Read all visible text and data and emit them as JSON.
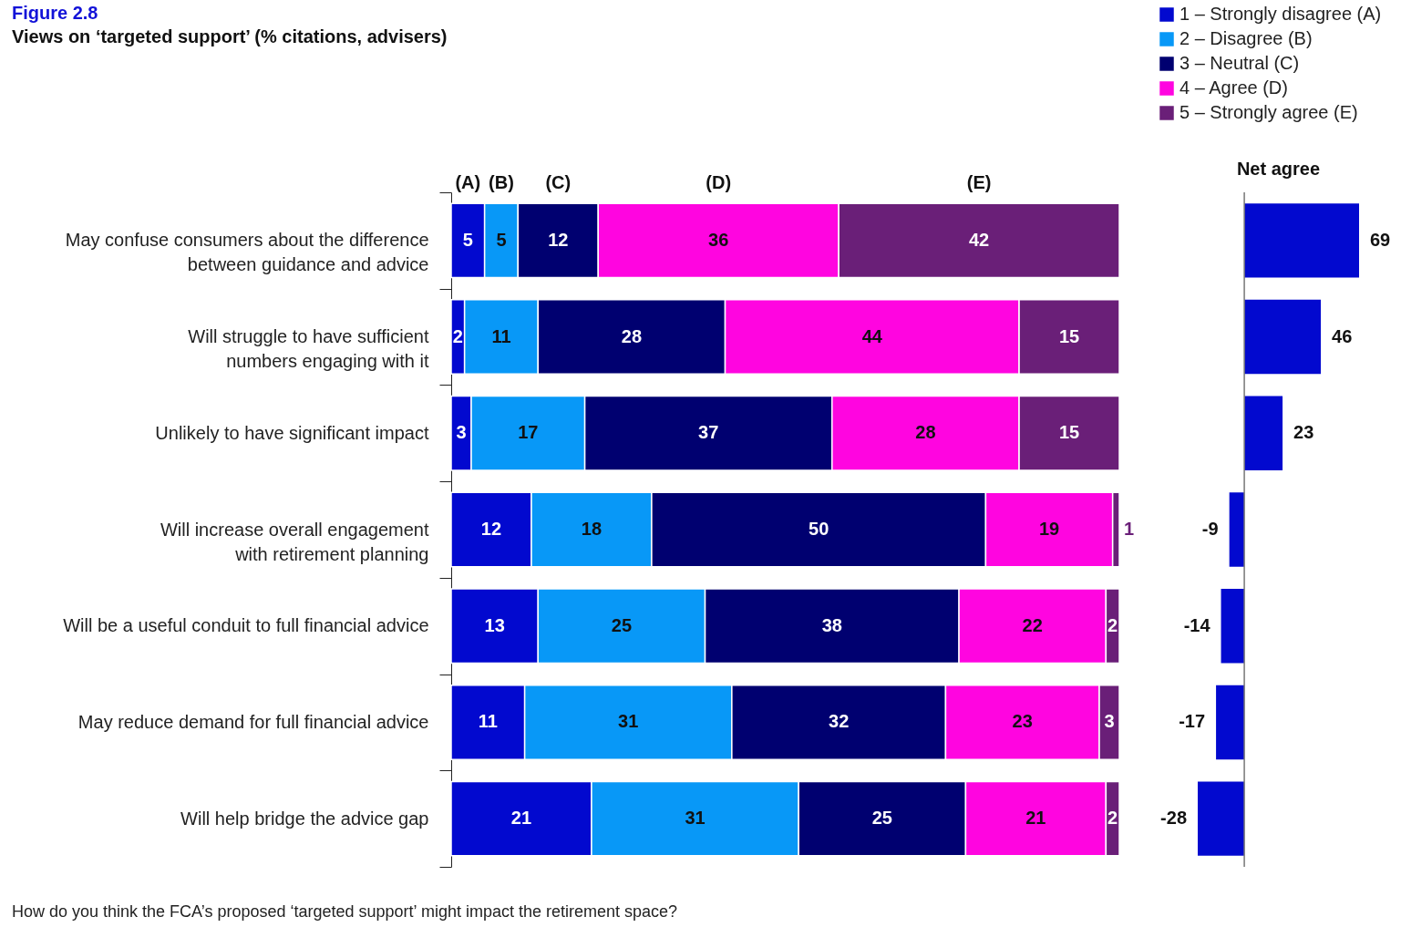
{
  "chart_data": [
    {
      "type": "bar",
      "orientation": "horizontal",
      "stacked": true,
      "title": "Figure 2.8",
      "subtitle": "Views on ‘targeted support’ (% citations, advisers)",
      "categories": [
        "May confuse consumers about the difference between guidance and advice",
        "Will struggle to have sufficient numbers engaging with it",
        "Unlikely to have significant impact",
        "Will increase overall engagement with retirement planning",
        "Will be a useful conduit to full financial advice",
        "May reduce demand for full financial advice",
        "Will help bridge the advice gap"
      ],
      "series": [
        {
          "name": "1 – Strongly disagree (A)",
          "color": "#0209cf",
          "values": [
            5,
            2,
            3,
            12,
            13,
            11,
            21
          ]
        },
        {
          "name": "2 – Disagree (B)",
          "color": "#0898f7",
          "values": [
            5,
            11,
            17,
            18,
            25,
            31,
            31
          ]
        },
        {
          "name": "3 – Neutral (C)",
          "color": "#000070",
          "values": [
            12,
            28,
            37,
            50,
            38,
            32,
            25
          ]
        },
        {
          "name": "4 – Agree (D)",
          "color": "#ff05e0",
          "values": [
            36,
            44,
            28,
            19,
            22,
            23,
            21
          ]
        },
        {
          "name": "5 – Strongly agree (E)",
          "color": "#6a1f78",
          "values": [
            42,
            15,
            15,
            1,
            2,
            3,
            2
          ]
        }
      ],
      "xlim": [
        0,
        100
      ],
      "data_labels": true,
      "legend": "top right",
      "tick_labels": "y",
      "annotations": [
        "(A)",
        "(B)",
        "(C)",
        "(D)",
        "(E)",
        "How do you think the FCA’s proposed ‘targeted support’ might impact the retirement space?"
      ]
    },
    {
      "type": "bar",
      "orientation": "horizontal",
      "title": "Net agree",
      "categories": [
        "May confuse consumers about the difference between guidance and advice",
        "Will struggle to have sufficient numbers engaging with it",
        "Unlikely to have significant impact",
        "Will increase overall engagement with retirement planning",
        "Will be a useful conduit to full financial advice",
        "May reduce demand for full financial advice",
        "Will help bridge the advice gap"
      ],
      "values": [
        69,
        46,
        23,
        -9,
        -14,
        -17,
        -28
      ],
      "color": "#0209cf",
      "data_labels": true,
      "tick_labels": false,
      "ref_lines": [
        {
          "axis": "x",
          "value": 0,
          "color": "#777777"
        }
      ]
    }
  ]
}
